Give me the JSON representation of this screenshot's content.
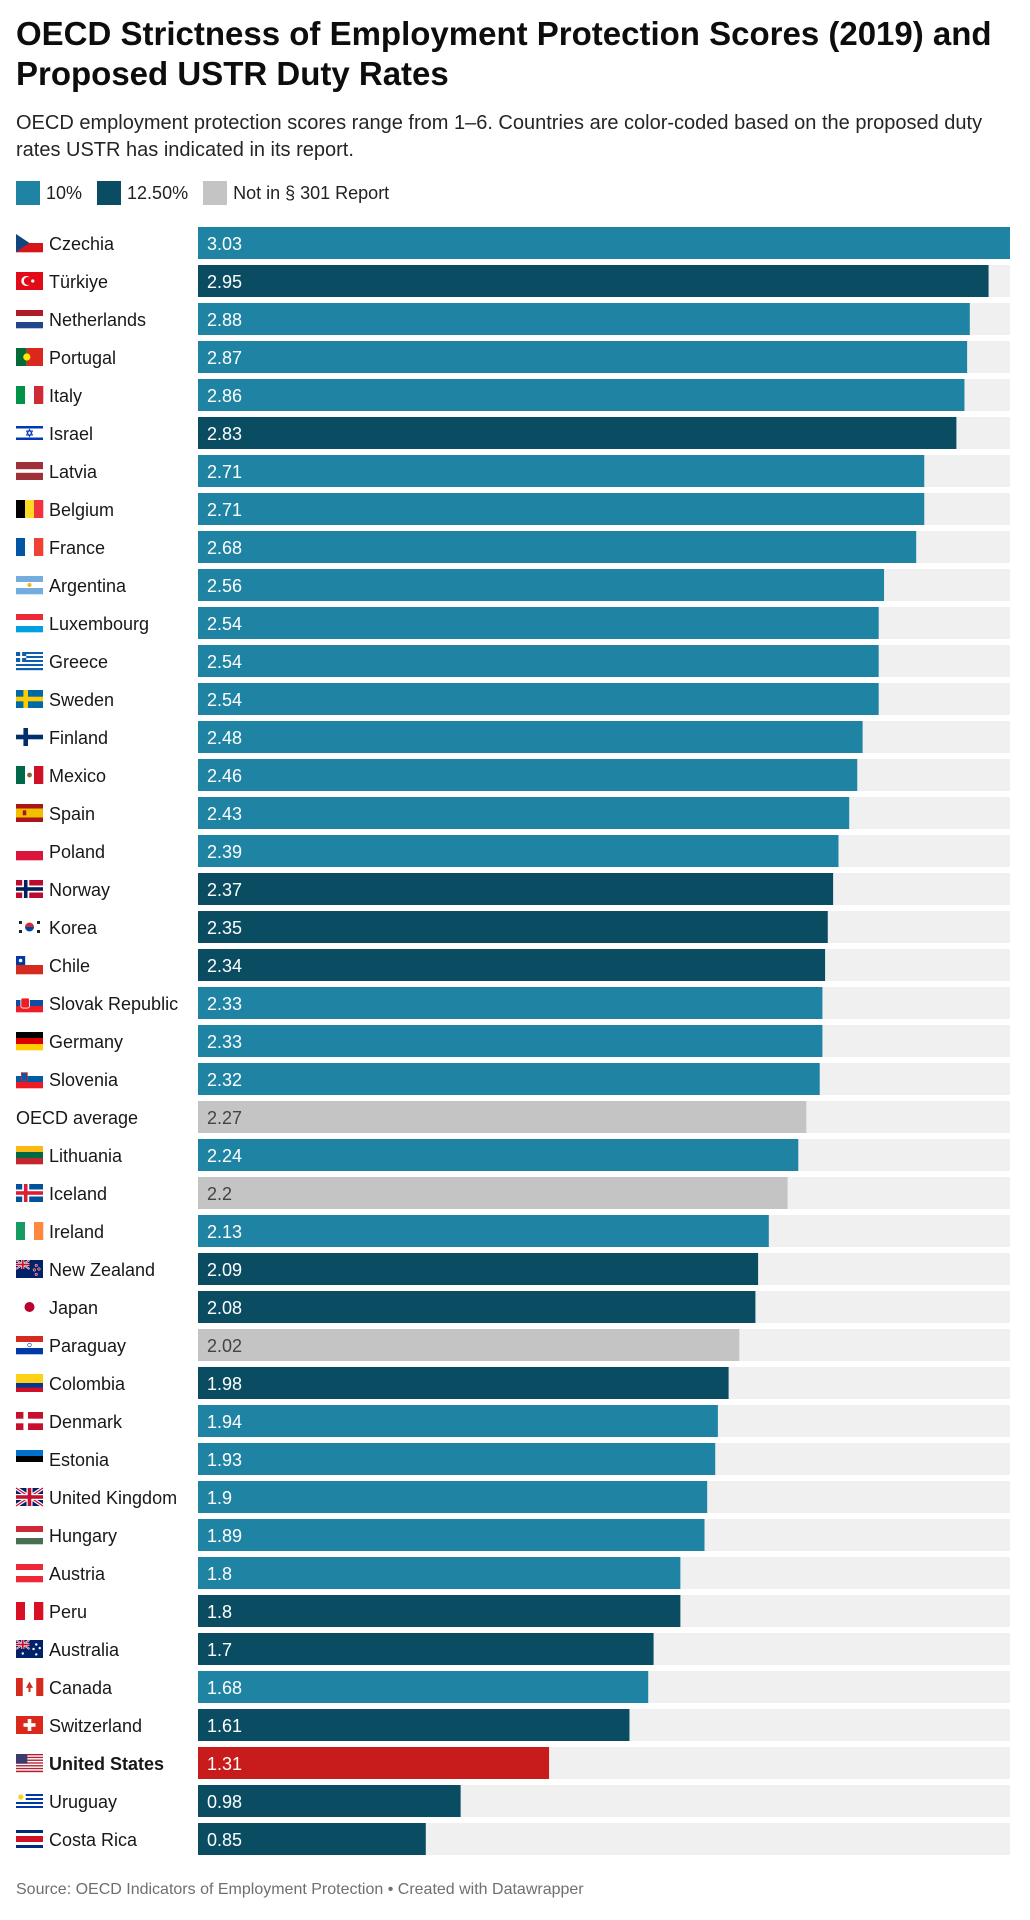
{
  "title": "OECD Strictness of Employment Protection Scores (2019) and Proposed USTR Duty Rates",
  "subtitle": "OECD employment protection scores range from 1–6. Countries are color-coded based on the proposed duty rates USTR has indicated in its report.",
  "legend": [
    {
      "label": "10%",
      "color": "#1f84a3"
    },
    {
      "label": "12.50%",
      "color": "#0a4d63"
    },
    {
      "label": "Not in § 301 Report",
      "color": "#c4c4c4"
    }
  ],
  "footer": "Source: OECD Indicators of Employment Protection • Created with Datawrapper",
  "colors": {
    "ten_pct": "#1f84a3",
    "twelve_five_pct": "#0a4d63",
    "not_in_report": "#c4c4c4",
    "highlight": "#c81c1c",
    "track": "#f0f0f0"
  },
  "chart_data": {
    "type": "bar",
    "orientation": "horizontal",
    "title": "OECD Strictness of Employment Protection Scores (2019) and Proposed USTR Duty Rates",
    "xlim": [
      0,
      3.03
    ],
    "grid": false,
    "legend_position": "top-left",
    "bars": [
      {
        "label": "Czechia",
        "value": 3.03,
        "group": "10%",
        "flag": "czechia-flag"
      },
      {
        "label": "Türkiye",
        "value": 2.95,
        "group": "12.50%",
        "flag": "turkiye-flag"
      },
      {
        "label": "Netherlands",
        "value": 2.88,
        "group": "10%",
        "flag": "netherlands-flag"
      },
      {
        "label": "Portugal",
        "value": 2.87,
        "group": "10%",
        "flag": "portugal-flag"
      },
      {
        "label": "Italy",
        "value": 2.86,
        "group": "10%",
        "flag": "italy-flag"
      },
      {
        "label": "Israel",
        "value": 2.83,
        "group": "12.50%",
        "flag": "israel-flag"
      },
      {
        "label": "Latvia",
        "value": 2.71,
        "group": "10%",
        "flag": "latvia-flag"
      },
      {
        "label": "Belgium",
        "value": 2.71,
        "group": "10%",
        "flag": "belgium-flag"
      },
      {
        "label": "France",
        "value": 2.68,
        "group": "10%",
        "flag": "france-flag"
      },
      {
        "label": "Argentina",
        "value": 2.56,
        "group": "10%",
        "flag": "argentina-flag"
      },
      {
        "label": "Luxembourg",
        "value": 2.54,
        "group": "10%",
        "flag": "luxembourg-flag"
      },
      {
        "label": "Greece",
        "value": 2.54,
        "group": "10%",
        "flag": "greece-flag"
      },
      {
        "label": "Sweden",
        "value": 2.54,
        "group": "10%",
        "flag": "sweden-flag"
      },
      {
        "label": "Finland",
        "value": 2.48,
        "group": "10%",
        "flag": "finland-flag"
      },
      {
        "label": "Mexico",
        "value": 2.46,
        "group": "10%",
        "flag": "mexico-flag"
      },
      {
        "label": "Spain",
        "value": 2.43,
        "group": "10%",
        "flag": "spain-flag"
      },
      {
        "label": "Poland",
        "value": 2.39,
        "group": "10%",
        "flag": "poland-flag"
      },
      {
        "label": "Norway",
        "value": 2.37,
        "group": "12.50%",
        "flag": "norway-flag"
      },
      {
        "label": "Korea",
        "value": 2.35,
        "group": "12.50%",
        "flag": "korea-flag"
      },
      {
        "label": "Chile",
        "value": 2.34,
        "group": "12.50%",
        "flag": "chile-flag"
      },
      {
        "label": "Slovak Republic",
        "value": 2.33,
        "group": "10%",
        "flag": "slovakia-flag"
      },
      {
        "label": "Germany",
        "value": 2.33,
        "group": "10%",
        "flag": "germany-flag"
      },
      {
        "label": "Slovenia",
        "value": 2.32,
        "group": "10%",
        "flag": "slovenia-flag"
      },
      {
        "label": "OECD average",
        "value": 2.27,
        "group": "Not in § 301 Report",
        "flag": ""
      },
      {
        "label": "Lithuania",
        "value": 2.24,
        "group": "10%",
        "flag": "lithuania-flag"
      },
      {
        "label": "Iceland",
        "value": 2.2,
        "group": "Not in § 301 Report",
        "flag": "iceland-flag"
      },
      {
        "label": "Ireland",
        "value": 2.13,
        "group": "10%",
        "flag": "ireland-flag"
      },
      {
        "label": "New Zealand",
        "value": 2.09,
        "group": "12.50%",
        "flag": "new-zealand-flag"
      },
      {
        "label": "Japan",
        "value": 2.08,
        "group": "12.50%",
        "flag": "japan-flag"
      },
      {
        "label": "Paraguay",
        "value": 2.02,
        "group": "Not in § 301 Report",
        "flag": "paraguay-flag"
      },
      {
        "label": "Colombia",
        "value": 1.98,
        "group": "12.50%",
        "flag": "colombia-flag"
      },
      {
        "label": "Denmark",
        "value": 1.94,
        "group": "10%",
        "flag": "denmark-flag"
      },
      {
        "label": "Estonia",
        "value": 1.93,
        "group": "10%",
        "flag": "estonia-flag"
      },
      {
        "label": "United Kingdom",
        "value": 1.9,
        "group": "10%",
        "flag": "united-kingdom-flag"
      },
      {
        "label": "Hungary",
        "value": 1.89,
        "group": "10%",
        "flag": "hungary-flag"
      },
      {
        "label": "Austria",
        "value": 1.8,
        "group": "10%",
        "flag": "austria-flag"
      },
      {
        "label": "Peru",
        "value": 1.8,
        "group": "12.50%",
        "flag": "peru-flag"
      },
      {
        "label": "Australia",
        "value": 1.7,
        "group": "12.50%",
        "flag": "australia-flag"
      },
      {
        "label": "Canada",
        "value": 1.68,
        "group": "10%",
        "flag": "canada-flag"
      },
      {
        "label": "Switzerland",
        "value": 1.61,
        "group": "12.50%",
        "flag": "switzerland-flag"
      },
      {
        "label": "United States",
        "value": 1.31,
        "group": "United States",
        "flag": "united-states-flag",
        "highlight": true
      },
      {
        "label": "Uruguay",
        "value": 0.98,
        "group": "12.50%",
        "flag": "uruguay-flag"
      },
      {
        "label": "Costa Rica",
        "value": 0.85,
        "group": "12.50%",
        "flag": "costa-rica-flag"
      }
    ]
  }
}
